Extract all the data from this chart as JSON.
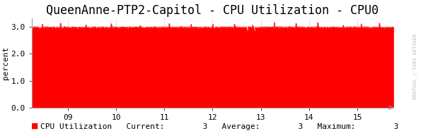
{
  "title": "QueenAnne-PTP2-Capitol - CPU Utilization - CPU0",
  "ylabel": "percent",
  "ylim": [
    0.0,
    3.3
  ],
  "yticks": [
    0.0,
    1.0,
    2.0,
    3.0
  ],
  "ytick_labels": [
    "0.0",
    "1.0",
    "2.0",
    "3.0"
  ],
  "xlim": [
    8.25,
    15.75
  ],
  "xticks": [
    9,
    10,
    11,
    12,
    13,
    14,
    15
  ],
  "xtick_labels": [
    "09",
    "10",
    "11",
    "12",
    "13",
    "14",
    "15"
  ],
  "fill_color": "#ff0000",
  "line_color": "#ff0000",
  "background_color": "#ffffff",
  "plot_bg_color": "#ffffff",
  "grid_color": "#ff0000",
  "grid_alpha": 0.35,
  "title_fontsize": 12,
  "axis_fontsize": 8,
  "legend_label": "CPU Utilization",
  "legend_current": "3",
  "legend_average": "3",
  "legend_maximum": "3",
  "watermark": "RRDTOOL / TOBI OETIKER",
  "base_value": 2.98,
  "n_points": 1200
}
